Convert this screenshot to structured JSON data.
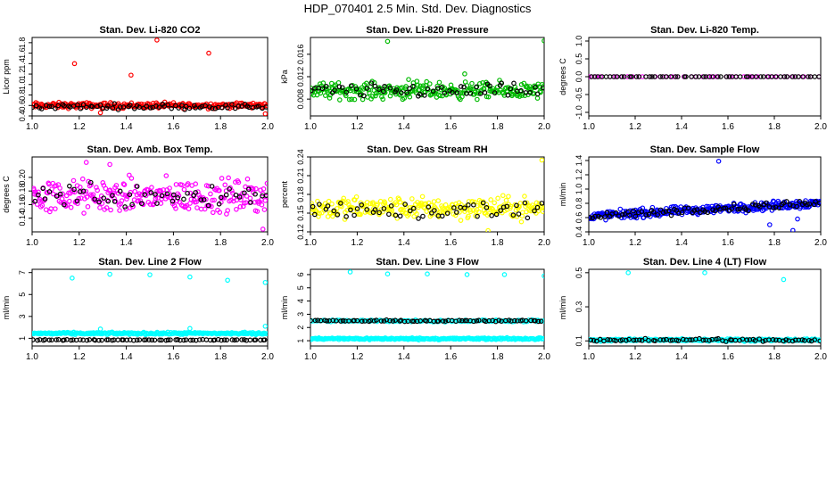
{
  "figure": {
    "title": "HDP_070401  2.5 Min. Std. Dev. Diagnostics"
  },
  "chart_data": [
    {
      "type": "scatter",
      "title": "Stan. Dev. Li-820 CO2",
      "ylabel": "Licor ppm",
      "xlim": [
        1.0,
        2.0
      ],
      "ylim": [
        0.4,
        1.9
      ],
      "xticks": [
        "1.0",
        "1.2",
        "1.4",
        "1.6",
        "1.8",
        "2.0"
      ],
      "yticks": [
        "0.4",
        "0.6",
        "0.8",
        "1.0",
        "1.2",
        "1.4",
        "1.6",
        "1.8"
      ],
      "series": [
        {
          "color": "#ff0000",
          "band": [
            0.6,
            0.045
          ],
          "n": 260,
          "drift": 0.0,
          "points": [
            [
              1.18,
              1.4
            ],
            [
              1.42,
              1.18
            ],
            [
              1.53,
              1.85
            ],
            [
              1.75,
              1.6
            ],
            [
              1.29,
              0.46
            ],
            [
              1.99,
              0.44
            ]
          ]
        },
        {
          "color": "#000000",
          "band": [
            0.58,
            0.04
          ],
          "n": 75,
          "drift": 0.0,
          "points": []
        }
      ]
    },
    {
      "type": "scatter",
      "title": "Stan. Dev. Li-820 Pressure",
      "ylabel": "kPa",
      "xlim": [
        1.0,
        2.0
      ],
      "ylim": [
        0.005,
        0.019
      ],
      "xticks": [
        "1.0",
        "1.2",
        "1.4",
        "1.6",
        "1.8",
        "2.0"
      ],
      "yticks": [
        "0.008",
        "0.012",
        "0.016"
      ],
      "series": [
        {
          "color": "#00bb00",
          "band": [
            0.0095,
            0.0012
          ],
          "n": 260,
          "drift": 0.0,
          "points": [
            [
              1.33,
              0.0183
            ],
            [
              2.0,
              0.0184
            ],
            [
              1.66,
              0.0125
            ],
            [
              1.42,
              0.0115
            ]
          ]
        },
        {
          "color": "#000000",
          "band": [
            0.0095,
            0.001
          ],
          "n": 60,
          "drift": 0.0,
          "points": []
        }
      ]
    },
    {
      "type": "scatter",
      "title": "Stan. Dev. Li-820 Temp.",
      "ylabel": "degrees C",
      "xlim": [
        1.0,
        2.0
      ],
      "ylim": [
        -1.1,
        1.1
      ],
      "xticks": [
        "1.0",
        "1.2",
        "1.4",
        "1.6",
        "1.8",
        "2.0"
      ],
      "yticks": [
        "-1.0",
        "-0.5",
        "0.0",
        "0.5",
        "1.0"
      ],
      "series": [
        {
          "color": "#ff00ff",
          "band": [
            0.0,
            0.0
          ],
          "n": 40,
          "drift": 0.0,
          "points": [
            [
              1.0,
              0.0
            ]
          ]
        },
        {
          "color": "#000000",
          "band": [
            0.0,
            0.0
          ],
          "n": 60,
          "drift": 0.0,
          "points": []
        }
      ]
    },
    {
      "type": "scatter",
      "title": "Stan. Dev. Amb. Box Temp.",
      "ylabel": "degrees C",
      "xlim": [
        1.0,
        2.0
      ],
      "ylim": [
        0.12,
        0.23
      ],
      "xticks": [
        "1.0",
        "1.2",
        "1.4",
        "1.6",
        "1.8",
        "2.0"
      ],
      "yticks": [
        "0.14",
        "0.16",
        "0.18",
        "0.20"
      ],
      "series": [
        {
          "color": "#ff00ff",
          "band": [
            0.172,
            0.02
          ],
          "n": 280,
          "drift": 0.0,
          "points": [
            [
              1.23,
              0.222
            ],
            [
              1.33,
              0.219
            ],
            [
              1.98,
              0.124
            ]
          ]
        },
        {
          "color": "#000000",
          "band": [
            0.175,
            0.016
          ],
          "n": 55,
          "drift": 0.0,
          "points": []
        }
      ]
    },
    {
      "type": "scatter",
      "title": "Stan. Dev. Gas Stream RH",
      "ylabel": "percent",
      "xlim": [
        1.0,
        2.0
      ],
      "ylim": [
        0.12,
        0.24
      ],
      "xticks": [
        "1.0",
        "1.2",
        "1.4",
        "1.6",
        "1.8",
        "2.0"
      ],
      "yticks": [
        "0.12",
        "0.15",
        "0.18",
        "0.21",
        "0.24"
      ],
      "series": [
        {
          "color": "#ffff00",
          "band": [
            0.158,
            0.014
          ],
          "n": 270,
          "drift": 0.0,
          "points": [
            [
              1.99,
              0.235
            ],
            [
              1.76,
              0.122
            ]
          ]
        },
        {
          "color": "#000000",
          "band": [
            0.155,
            0.012
          ],
          "n": 55,
          "drift": 0.0,
          "points": []
        }
      ]
    },
    {
      "type": "scatter",
      "title": "Stan. Dev. Sample Flow",
      "ylabel": "ml/min",
      "xlim": [
        1.0,
        2.0
      ],
      "ylim": [
        0.4,
        1.45
      ],
      "xticks": [
        "1.0",
        "1.2",
        "1.4",
        "1.6",
        "1.8",
        "2.0"
      ],
      "yticks": [
        "0.4",
        "0.6",
        "0.8",
        "1.0",
        "1.2",
        "1.4"
      ],
      "series": [
        {
          "color": "#0000ff",
          "band": [
            0.62,
            0.05
          ],
          "n": 330,
          "drift": 0.3,
          "points": [
            [
              1.56,
              1.39
            ],
            [
              1.88,
              0.42
            ],
            [
              1.78,
              0.5
            ],
            [
              1.9,
              0.58
            ]
          ]
        },
        {
          "color": "#000000",
          "band": [
            0.62,
            0.04
          ],
          "n": 80,
          "drift": 0.3,
          "points": []
        }
      ]
    },
    {
      "type": "scatter",
      "title": "Stan. Dev. Line 2 Flow",
      "ylabel": "ml/min",
      "xlim": [
        1.0,
        2.0
      ],
      "ylim": [
        0.3,
        7.3
      ],
      "xticks": [
        "1.0",
        "1.2",
        "1.4",
        "1.6",
        "1.8",
        "2.0"
      ],
      "yticks": [
        "1",
        "3",
        "5",
        "7"
      ],
      "series": [
        {
          "color": "#00ffff",
          "band": [
            1.45,
            0.08
          ],
          "n": 260,
          "drift": 0.0,
          "points": [
            [
              1.17,
              6.5
            ],
            [
              1.33,
              6.85
            ],
            [
              1.5,
              6.8
            ],
            [
              1.67,
              6.6
            ],
            [
              1.83,
              6.3
            ],
            [
              1.99,
              6.1
            ],
            [
              1.99,
              2.1
            ],
            [
              1.67,
              1.9
            ],
            [
              1.29,
              1.85
            ]
          ]
        },
        {
          "color": "#000000",
          "band": [
            0.85,
            0.03
          ],
          "n": 75,
          "drift": 0.0,
          "points": []
        }
      ]
    },
    {
      "type": "scatter",
      "title": "Stan. Dev. Line 3 Flow",
      "ylabel": "ml/min",
      "xlim": [
        1.0,
        2.0
      ],
      "ylim": [
        0.6,
        6.4
      ],
      "xticks": [
        "1.0",
        "1.2",
        "1.4",
        "1.6",
        "1.8",
        "2.0"
      ],
      "yticks": [
        "1",
        "2",
        "3",
        "4",
        "5",
        "6"
      ],
      "series": [
        {
          "color": "#00ffff",
          "band": [
            1.15,
            0.06
          ],
          "n": 260,
          "drift": 0.0,
          "points": [
            [
              1.17,
              6.2
            ],
            [
              1.33,
              6.05
            ],
            [
              1.5,
              6.05
            ],
            [
              1.67,
              6.0
            ],
            [
              1.83,
              6.0
            ],
            [
              2.0,
              5.9
            ]
          ]
        },
        {
          "color": "#00ffff",
          "band": [
            2.5,
            0.06
          ],
          "n": 150,
          "drift": 0.0,
          "points": []
        },
        {
          "color": "#000000",
          "band": [
            2.5,
            0.05
          ],
          "n": 75,
          "drift": 0.0,
          "points": []
        }
      ]
    },
    {
      "type": "scatter",
      "title": "Stan. Dev. Line 4 (LT) Flow",
      "ylabel": "ml/min",
      "xlim": [
        1.0,
        2.0
      ],
      "ylim": [
        0.07,
        0.52
      ],
      "xticks": [
        "1.0",
        "1.2",
        "1.4",
        "1.6",
        "1.8",
        "2.0"
      ],
      "yticks": [
        "0.1",
        "0.3",
        "0.5"
      ],
      "series": [
        {
          "color": "#00ffff",
          "band": [
            0.105,
            0.006
          ],
          "n": 260,
          "drift": 0.0,
          "points": [
            [
              1.17,
              0.5
            ],
            [
              1.5,
              0.5
            ],
            [
              1.84,
              0.46
            ]
          ]
        },
        {
          "color": "#000000",
          "band": [
            0.105,
            0.006
          ],
          "n": 70,
          "drift": 0.0,
          "points": []
        }
      ]
    }
  ]
}
